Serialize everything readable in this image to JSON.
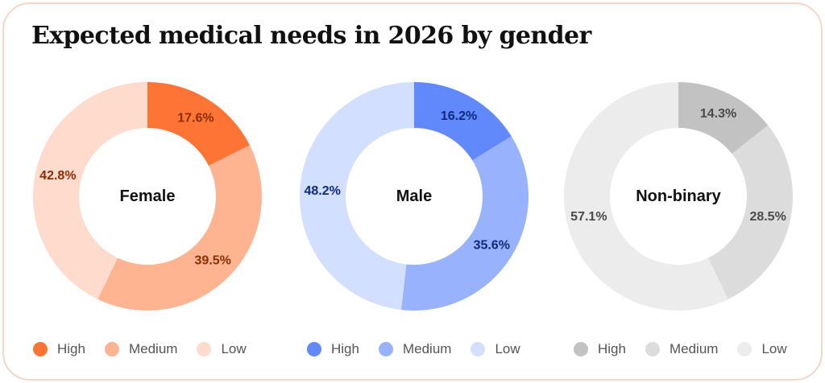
{
  "title": "Expected medical needs in 2026 by gender",
  "chart_data": [
    {
      "type": "pie",
      "center_label": "Female",
      "categories": [
        "High",
        "Medium",
        "Low"
      ],
      "values": [
        17.6,
        39.5,
        42.8
      ],
      "value_labels": [
        "17.6%",
        "39.5%",
        "42.8%"
      ],
      "colors": [
        "#fe7434",
        "#feb491",
        "#fedbcd"
      ],
      "label_colors": [
        "#8a2f05",
        "#8a2f05",
        "#8a2f05"
      ],
      "legend": {
        "position": "bottom",
        "labels": [
          "High",
          "Medium",
          "Low"
        ]
      }
    },
    {
      "type": "pie",
      "center_label": "Male",
      "categories": [
        "High",
        "Medium",
        "Low"
      ],
      "values": [
        16.2,
        35.6,
        48.2
      ],
      "value_labels": [
        "16.2%",
        "35.6%",
        "48.2%"
      ],
      "colors": [
        "#6189fc",
        "#98b2fe",
        "#d3dffe"
      ],
      "label_colors": [
        "#0d2a7e",
        "#0d2a7e",
        "#0d2a7e"
      ],
      "legend": {
        "position": "bottom",
        "labels": [
          "High",
          "Medium",
          "Low"
        ]
      }
    },
    {
      "type": "pie",
      "center_label": "Non-binary",
      "categories": [
        "High",
        "Medium",
        "Low"
      ],
      "values": [
        14.3,
        28.5,
        57.1
      ],
      "value_labels": [
        "14.3%",
        "28.5%",
        "57.1%"
      ],
      "colors": [
        "#c2c2c2",
        "#dcdcdc",
        "#ececec"
      ],
      "label_colors": [
        "#4a4a4a",
        "#4a4a4a",
        "#4a4a4a"
      ],
      "legend": {
        "position": "bottom",
        "labels": [
          "High",
          "Medium",
          "Low"
        ]
      }
    }
  ]
}
